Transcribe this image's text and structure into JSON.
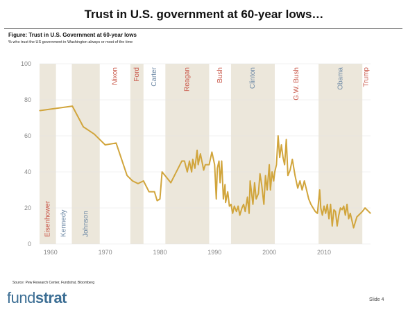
{
  "slide": {
    "title": "Trust in U.S. government at 60-year lows…",
    "figure_title": "Figure: Trust in U.S. Government at 60-year lows",
    "figure_subtitle": "% who trust the US government in Washington always or most of the time",
    "source": "Source: Pew Research Center, Fundstrat, Bloomberg",
    "logo_light": "fund",
    "logo_bold": "strat",
    "slide_number": "Slide  4"
  },
  "colors": {
    "line": "#d1a53c",
    "band": "#ece7db",
    "republican": "#c9584a",
    "democrat": "#6f8aa6",
    "axis_text": "#888888",
    "grid": "#e4e4e4",
    "title_rule": "#555555",
    "logo": "#3c6e94"
  },
  "chart_data": {
    "type": "line",
    "title": "",
    "xlabel": "",
    "ylabel": "",
    "xlim": [
      1958,
      2018.5
    ],
    "ylim": [
      0,
      100
    ],
    "x_ticks": [
      1960,
      1970,
      1980,
      1990,
      2000,
      2010
    ],
    "y_ticks": [
      0,
      20,
      40,
      60,
      80,
      100
    ],
    "grid": true,
    "legend": "none",
    "series": [
      {
        "name": "",
        "points": [
          [
            1958,
            74
          ],
          [
            1964,
            76.5
          ],
          [
            1966,
            65
          ],
          [
            1968,
            61
          ],
          [
            1970,
            55
          ],
          [
            1972,
            56
          ],
          [
            1974,
            38
          ],
          [
            1975,
            35
          ],
          [
            1976,
            33.5
          ],
          [
            1977,
            35
          ],
          [
            1978,
            29
          ],
          [
            1979,
            29
          ],
          [
            1979.5,
            24
          ],
          [
            1980,
            25
          ],
          [
            1980.4,
            40
          ],
          [
            1982,
            34
          ],
          [
            1984,
            46
          ],
          [
            1984.5,
            46
          ],
          [
            1985,
            40
          ],
          [
            1985.4,
            46
          ],
          [
            1985.8,
            40
          ],
          [
            1986,
            47
          ],
          [
            1986.4,
            42
          ],
          [
            1986.8,
            52
          ],
          [
            1987,
            44
          ],
          [
            1987.4,
            50
          ],
          [
            1987.8,
            44
          ],
          [
            1988,
            41
          ],
          [
            1988.3,
            44
          ],
          [
            1989,
            44
          ],
          [
            1989.5,
            51
          ],
          [
            1990,
            44
          ],
          [
            1990.3,
            25
          ],
          [
            1990.5,
            42
          ],
          [
            1990.8,
            46
          ],
          [
            1991,
            34
          ],
          [
            1991.3,
            46
          ],
          [
            1991.6,
            25
          ],
          [
            1991.9,
            33
          ],
          [
            1992,
            23
          ],
          [
            1992.4,
            29
          ],
          [
            1992.7,
            21
          ],
          [
            1993,
            22
          ],
          [
            1993.3,
            17
          ],
          [
            1993.6,
            21
          ],
          [
            1994,
            18
          ],
          [
            1994.3,
            21
          ],
          [
            1994.6,
            16
          ],
          [
            1995,
            20
          ],
          [
            1995.3,
            22
          ],
          [
            1995.6,
            18
          ],
          [
            1996,
            26
          ],
          [
            1996.3,
            17
          ],
          [
            1996.5,
            35
          ],
          [
            1997,
            22
          ],
          [
            1997.3,
            34
          ],
          [
            1997.6,
            25
          ],
          [
            1998,
            28
          ],
          [
            1998.3,
            39
          ],
          [
            1998.6,
            33
          ],
          [
            1999,
            22
          ],
          [
            1999.3,
            38
          ],
          [
            1999.6,
            30
          ],
          [
            2000,
            44
          ],
          [
            2000.2,
            30
          ],
          [
            2000.5,
            40
          ],
          [
            2000.8,
            35
          ],
          [
            2001,
            40
          ],
          [
            2001.3,
            44
          ],
          [
            2001.6,
            60
          ],
          [
            2001.9,
            48
          ],
          [
            2002.2,
            55
          ],
          [
            2002.5,
            48
          ],
          [
            2002.8,
            44
          ],
          [
            2003.1,
            58
          ],
          [
            2003.4,
            38
          ],
          [
            2003.8,
            41
          ],
          [
            2004.2,
            47
          ],
          [
            2004.7,
            38
          ],
          [
            2005.2,
            31
          ],
          [
            2005.6,
            35
          ],
          [
            2006,
            30
          ],
          [
            2006.4,
            35
          ],
          [
            2006.8,
            30
          ],
          [
            2007.2,
            25
          ],
          [
            2007.6,
            22
          ],
          [
            2008,
            20
          ],
          [
            2008.4,
            18
          ],
          [
            2008.8,
            17
          ],
          [
            2009.2,
            30
          ],
          [
            2009.4,
            20
          ],
          [
            2009.7,
            16
          ],
          [
            2010,
            21
          ],
          [
            2010.3,
            17
          ],
          [
            2010.6,
            22
          ],
          [
            2010.9,
            14
          ],
          [
            2011.2,
            22
          ],
          [
            2011.5,
            10
          ],
          [
            2011.8,
            19
          ],
          [
            2012.1,
            18
          ],
          [
            2012.4,
            10
          ],
          [
            2012.7,
            16
          ],
          [
            2013,
            20
          ],
          [
            2013.3,
            19
          ],
          [
            2013.6,
            21
          ],
          [
            2013.9,
            16
          ],
          [
            2014.2,
            22
          ],
          [
            2014.5,
            14
          ],
          [
            2014.8,
            17
          ],
          [
            2015.1,
            13
          ],
          [
            2015.4,
            9
          ],
          [
            2016,
            15
          ],
          [
            2017,
            18
          ],
          [
            2017.5,
            20
          ],
          [
            2018.5,
            17
          ]
        ]
      }
    ],
    "presidencies": [
      {
        "name": "Eisenhower",
        "start": 1958,
        "end": 1961,
        "party": "R",
        "shaded": true,
        "label_pos": "bottom"
      },
      {
        "name": "Kennedy",
        "start": 1961,
        "end": 1963.9,
        "party": "D",
        "shaded": false,
        "label_pos": "bottom"
      },
      {
        "name": "Johnson",
        "start": 1963.9,
        "end": 1969,
        "party": "D",
        "shaded": true,
        "label_pos": "bottom"
      },
      {
        "name": "Nixon",
        "start": 1969,
        "end": 1974.6,
        "party": "R",
        "shaded": false,
        "label_pos": "top"
      },
      {
        "name": "Ford",
        "start": 1974.6,
        "end": 1977,
        "party": "R",
        "shaded": true,
        "label_pos": "top"
      },
      {
        "name": "Carter",
        "start": 1977,
        "end": 1981,
        "party": "D",
        "shaded": false,
        "label_pos": "top"
      },
      {
        "name": "Reagan",
        "start": 1981,
        "end": 1989,
        "party": "R",
        "shaded": true,
        "label_pos": "top"
      },
      {
        "name": "Bush",
        "start": 1989,
        "end": 1993,
        "party": "R",
        "shaded": false,
        "label_pos": "top"
      },
      {
        "name": "Clinton",
        "start": 1993,
        "end": 2001,
        "party": "D",
        "shaded": true,
        "label_pos": "top"
      },
      {
        "name": "G.W. Bush",
        "start": 2001,
        "end": 2009,
        "party": "R",
        "shaded": false,
        "label_pos": "top"
      },
      {
        "name": "Obama",
        "start": 2009,
        "end": 2017,
        "party": "D",
        "shaded": true,
        "label_pos": "top"
      },
      {
        "name": "Trump",
        "start": 2017,
        "end": 2018.5,
        "party": "R",
        "shaded": false,
        "label_pos": "top"
      }
    ]
  }
}
